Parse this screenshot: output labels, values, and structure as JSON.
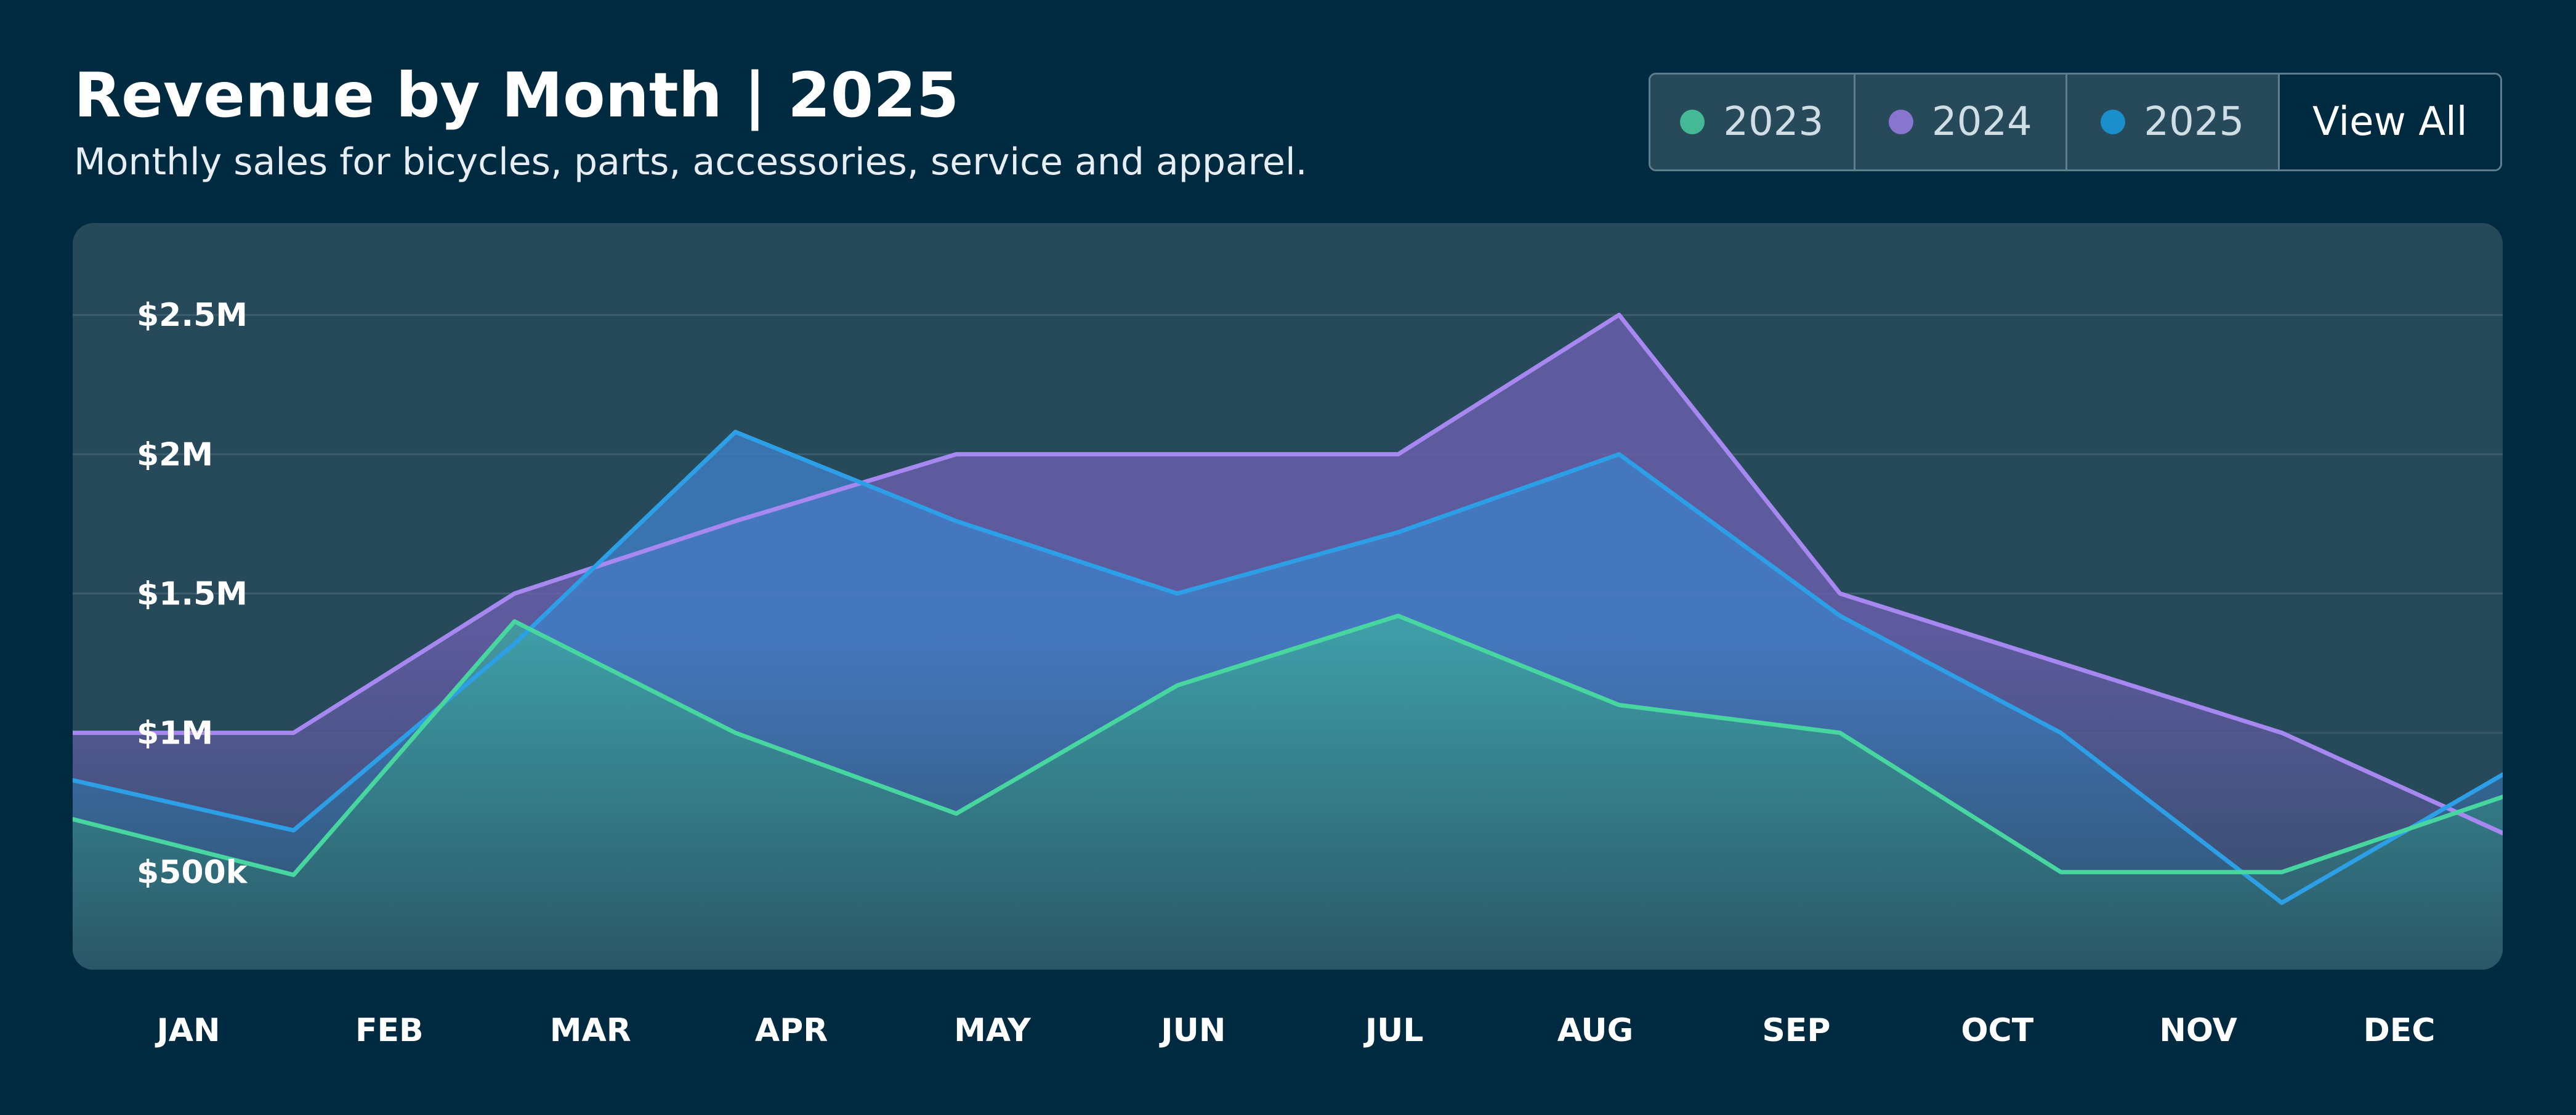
{
  "header": {
    "title": "Revenue by Month | 2025",
    "subtitle": "Monthly sales for bicycles, parts, accessories, service and apparel."
  },
  "legend": {
    "items": [
      {
        "label": "2023",
        "color": "#43b996"
      },
      {
        "label": "2024",
        "color": "#8875d0"
      },
      {
        "label": "2025",
        "color": "#1b8fcb"
      }
    ],
    "view_all_label": "View All"
  },
  "colors": {
    "background": "#002a40",
    "plot_background": "#274a5b",
    "gridline": "#3c5d6c"
  },
  "chart_data": {
    "type": "area",
    "title": "Revenue by Month | 2025",
    "subtitle": "Monthly sales for bicycles, parts, accessories, service and apparel.",
    "xlabel": "",
    "ylabel": "",
    "categories": [
      "JAN",
      "FEB",
      "MAR",
      "APR",
      "MAY",
      "JUN",
      "JUL",
      "AUG",
      "SEP",
      "OCT",
      "NOV",
      "DEC"
    ],
    "yticks": [
      {
        "value": 500000,
        "label": "$500k"
      },
      {
        "value": 1000000,
        "label": "$1M"
      },
      {
        "value": 1500000,
        "label": "$1.5M"
      },
      {
        "value": 2000000,
        "label": "$2M"
      },
      {
        "value": 2500000,
        "label": "$2.5M"
      }
    ],
    "ylim": [
      150000,
      2830000
    ],
    "grid": true,
    "legend_position": "top-right",
    "series": [
      {
        "name": "2024",
        "color": "#a688f0",
        "fill": "#6d5fb0",
        "values": [
          1000000,
          1000000,
          1500000,
          1760000,
          2000000,
          2000000,
          2000000,
          2500000,
          1500000,
          1250000,
          1000000,
          640000
        ]
      },
      {
        "name": "2025",
        "color": "#2d9fe6",
        "fill": "#3f7fc8",
        "values": [
          830000,
          650000,
          1320000,
          2080000,
          1760000,
          1500000,
          1720000,
          2000000,
          1420000,
          1000000,
          390000,
          850000
        ]
      },
      {
        "name": "2023",
        "color": "#48d6a0",
        "fill": "#3ca8a0",
        "values": [
          690000,
          490000,
          1400000,
          1000000,
          710000,
          1170000,
          1420000,
          1100000,
          1000000,
          500000,
          500000,
          770000
        ]
      }
    ]
  }
}
